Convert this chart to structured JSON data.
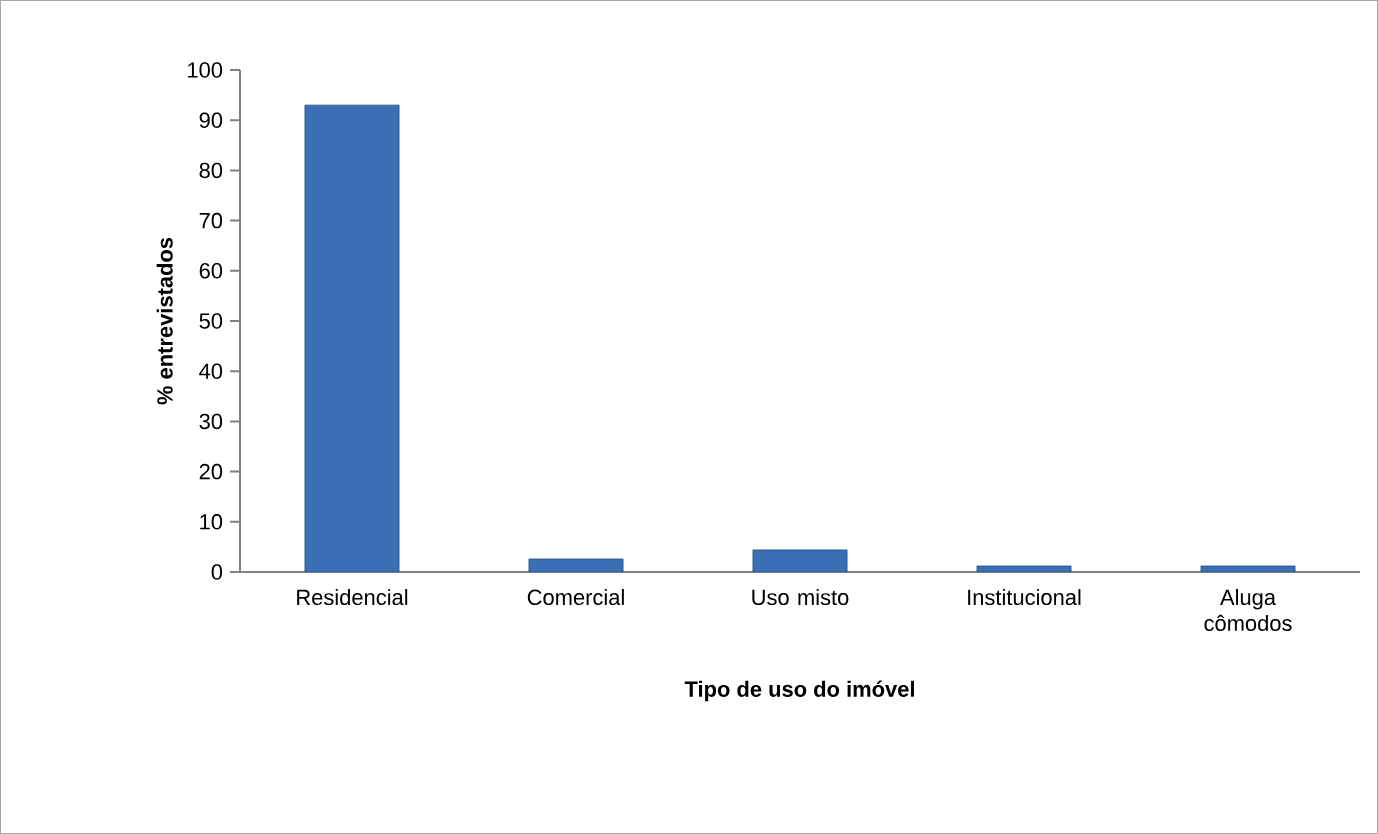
{
  "chart_data": {
    "type": "bar",
    "xlabel": "Tipo de uso do imóvel",
    "ylabel": "% entrevistados",
    "categories": [
      "Residencial",
      "Comercial",
      "Uso misto",
      "Institucional",
      "Aluga\ncômodos"
    ],
    "values": [
      93,
      2.6,
      4.4,
      1.2,
      1.2
    ],
    "color": "#3a6fb5",
    "ylim": [
      0,
      100
    ],
    "yticks": [
      0,
      10,
      20,
      30,
      40,
      50,
      60,
      70,
      80,
      90,
      100
    ],
    "grid": false
  }
}
